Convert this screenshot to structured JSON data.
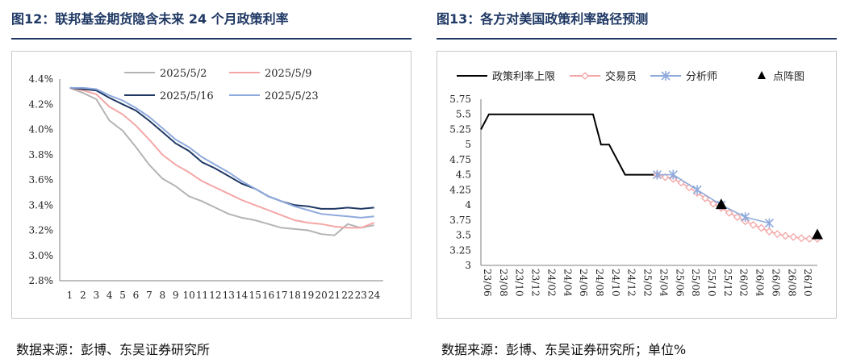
{
  "left": {
    "title": "图12：联邦基金期货隐含未来 24 个月政策利率",
    "source": "数据来源：彭博、东吴证券研究所"
  },
  "right": {
    "title": "图13：各方对美国政策利率路径预测",
    "source": "数据来源：彭博、东吴证券研究所；单位%"
  },
  "chart_data": [
    {
      "type": "line",
      "title": "图12：联邦基金期货隐含未来 24 个月政策利率",
      "x": [
        1,
        2,
        3,
        4,
        5,
        6,
        7,
        8,
        9,
        10,
        11,
        12,
        13,
        14,
        15,
        16,
        17,
        18,
        19,
        20,
        21,
        22,
        23,
        24
      ],
      "x_tick_labels": [
        "1",
        "2",
        "3",
        "4",
        "5",
        "6",
        "7",
        "8",
        "9",
        "10",
        "11",
        "12",
        "13",
        "14",
        "15",
        "16",
        "17",
        "18",
        "19",
        "20",
        "21",
        "22",
        "23",
        "24"
      ],
      "ylim": [
        2.8,
        4.4
      ],
      "y_ticks": [
        2.8,
        3.0,
        3.2,
        3.4,
        3.6,
        3.8,
        4.0,
        4.2,
        4.4
      ],
      "y_tick_labels": [
        "2.8%",
        "3.0%",
        "3.2%",
        "3.4%",
        "3.6%",
        "3.8%",
        "4.0%",
        "4.2%",
        "4.4%"
      ],
      "legend_position": "top",
      "grid": false,
      "series": [
        {
          "name": "2025/5/2",
          "color": "#b4b4b4",
          "values": [
            4.33,
            4.29,
            4.24,
            4.07,
            3.99,
            3.86,
            3.72,
            3.61,
            3.55,
            3.47,
            3.43,
            3.38,
            3.33,
            3.3,
            3.28,
            3.25,
            3.22,
            3.21,
            3.2,
            3.17,
            3.16,
            3.25,
            3.22,
            3.24
          ]
        },
        {
          "name": "2025/5/9",
          "color": "#f4a6a6",
          "values": [
            4.33,
            4.31,
            4.28,
            4.18,
            4.12,
            4.03,
            3.92,
            3.8,
            3.72,
            3.66,
            3.59,
            3.54,
            3.49,
            3.44,
            3.4,
            3.36,
            3.32,
            3.28,
            3.26,
            3.25,
            3.23,
            3.22,
            3.22,
            3.26
          ]
        },
        {
          "name": "2025/5/16",
          "color": "#1f3864",
          "values": [
            4.33,
            4.32,
            4.31,
            4.25,
            4.2,
            4.15,
            4.07,
            3.98,
            3.89,
            3.83,
            3.74,
            3.69,
            3.63,
            3.57,
            3.53,
            3.47,
            3.43,
            3.4,
            3.39,
            3.37,
            3.37,
            3.38,
            3.37,
            3.38
          ]
        },
        {
          "name": "2025/5/23",
          "color": "#8faadc",
          "values": [
            4.33,
            4.33,
            4.32,
            4.27,
            4.23,
            4.17,
            4.1,
            4.01,
            3.92,
            3.86,
            3.78,
            3.72,
            3.66,
            3.59,
            3.53,
            3.47,
            3.43,
            3.39,
            3.36,
            3.33,
            3.32,
            3.31,
            3.3,
            3.31
          ]
        }
      ]
    },
    {
      "type": "line",
      "title": "图13：各方对美国政策利率路径预测",
      "x_tick_labels": [
        "23/06",
        "23/08",
        "23/10",
        "23/12",
        "24/02",
        "24/04",
        "24/06",
        "24/08",
        "24/10",
        "24/12",
        "25/02",
        "25/04",
        "25/06",
        "25/08",
        "25/10",
        "25/12",
        "26/02",
        "26/04",
        "26/06",
        "26/08",
        "26/10"
      ],
      "x_range_months": [
        "2023-06",
        "2026-12"
      ],
      "ylim": [
        3,
        5.75
      ],
      "y_ticks": [
        3,
        3.25,
        3.5,
        3.75,
        4,
        4.25,
        4.5,
        4.75,
        5,
        5.25,
        5.5,
        5.75
      ],
      "y_tick_labels": [
        "3",
        "3.25",
        "3.5",
        "3.75",
        "4",
        "4.25",
        "4.5",
        "4.75",
        "5",
        "5.25",
        "5.5",
        "5.75"
      ],
      "legend_position": "top",
      "grid": false,
      "series": [
        {
          "name": "政策利率上限",
          "color": "#000000",
          "marker": "none",
          "points": [
            [
              "2023-06",
              5.25
            ],
            [
              "2023-07",
              5.5
            ],
            [
              "2023-08",
              5.5
            ],
            [
              "2023-09",
              5.5
            ],
            [
              "2023-10",
              5.5
            ],
            [
              "2023-11",
              5.5
            ],
            [
              "2023-12",
              5.5
            ],
            [
              "2024-01",
              5.5
            ],
            [
              "2024-02",
              5.5
            ],
            [
              "2024-03",
              5.5
            ],
            [
              "2024-04",
              5.5
            ],
            [
              "2024-05",
              5.5
            ],
            [
              "2024-06",
              5.5
            ],
            [
              "2024-07",
              5.5
            ],
            [
              "2024-08",
              5.5
            ],
            [
              "2024-09",
              5.0
            ],
            [
              "2024-10",
              5.0
            ],
            [
              "2024-11",
              4.75
            ],
            [
              "2024-12",
              4.5
            ],
            [
              "2025-01",
              4.5
            ],
            [
              "2025-02",
              4.5
            ],
            [
              "2025-03",
              4.5
            ],
            [
              "2025-04",
              4.5
            ]
          ]
        },
        {
          "name": "交易员",
          "color": "#f4a6a6",
          "marker": "diamond",
          "points": [
            [
              "2025-04",
              4.5
            ],
            [
              "2025-05",
              4.46
            ],
            [
              "2025-06",
              4.43
            ],
            [
              "2025-07",
              4.37
            ],
            [
              "2025-08",
              4.29
            ],
            [
              "2025-09",
              4.2
            ],
            [
              "2025-10",
              4.11
            ],
            [
              "2025-11",
              4.02
            ],
            [
              "2025-12",
              3.95
            ],
            [
              "2026-01",
              3.87
            ],
            [
              "2026-02",
              3.8
            ],
            [
              "2026-03",
              3.73
            ],
            [
              "2026-04",
              3.67
            ],
            [
              "2026-05",
              3.62
            ],
            [
              "2026-06",
              3.56
            ],
            [
              "2026-07",
              3.52
            ],
            [
              "2026-08",
              3.49
            ],
            [
              "2026-09",
              3.47
            ],
            [
              "2026-10",
              3.45
            ],
            [
              "2026-11",
              3.44
            ],
            [
              "2026-12",
              3.44
            ]
          ]
        },
        {
          "name": "分析师",
          "color": "#8faadc",
          "marker": "x",
          "points": [
            [
              "2025-04",
              4.5
            ],
            [
              "2025-06",
              4.5
            ],
            [
              "2025-09",
              4.25
            ],
            [
              "2025-12",
              4.0
            ],
            [
              "2026-03",
              3.8
            ],
            [
              "2026-06",
              3.7
            ]
          ]
        },
        {
          "name": "点阵图",
          "color": "#000000",
          "marker": "triangle",
          "points": [
            [
              "2025-12",
              4.0
            ],
            [
              "2026-12",
              3.5
            ]
          ]
        }
      ]
    }
  ]
}
